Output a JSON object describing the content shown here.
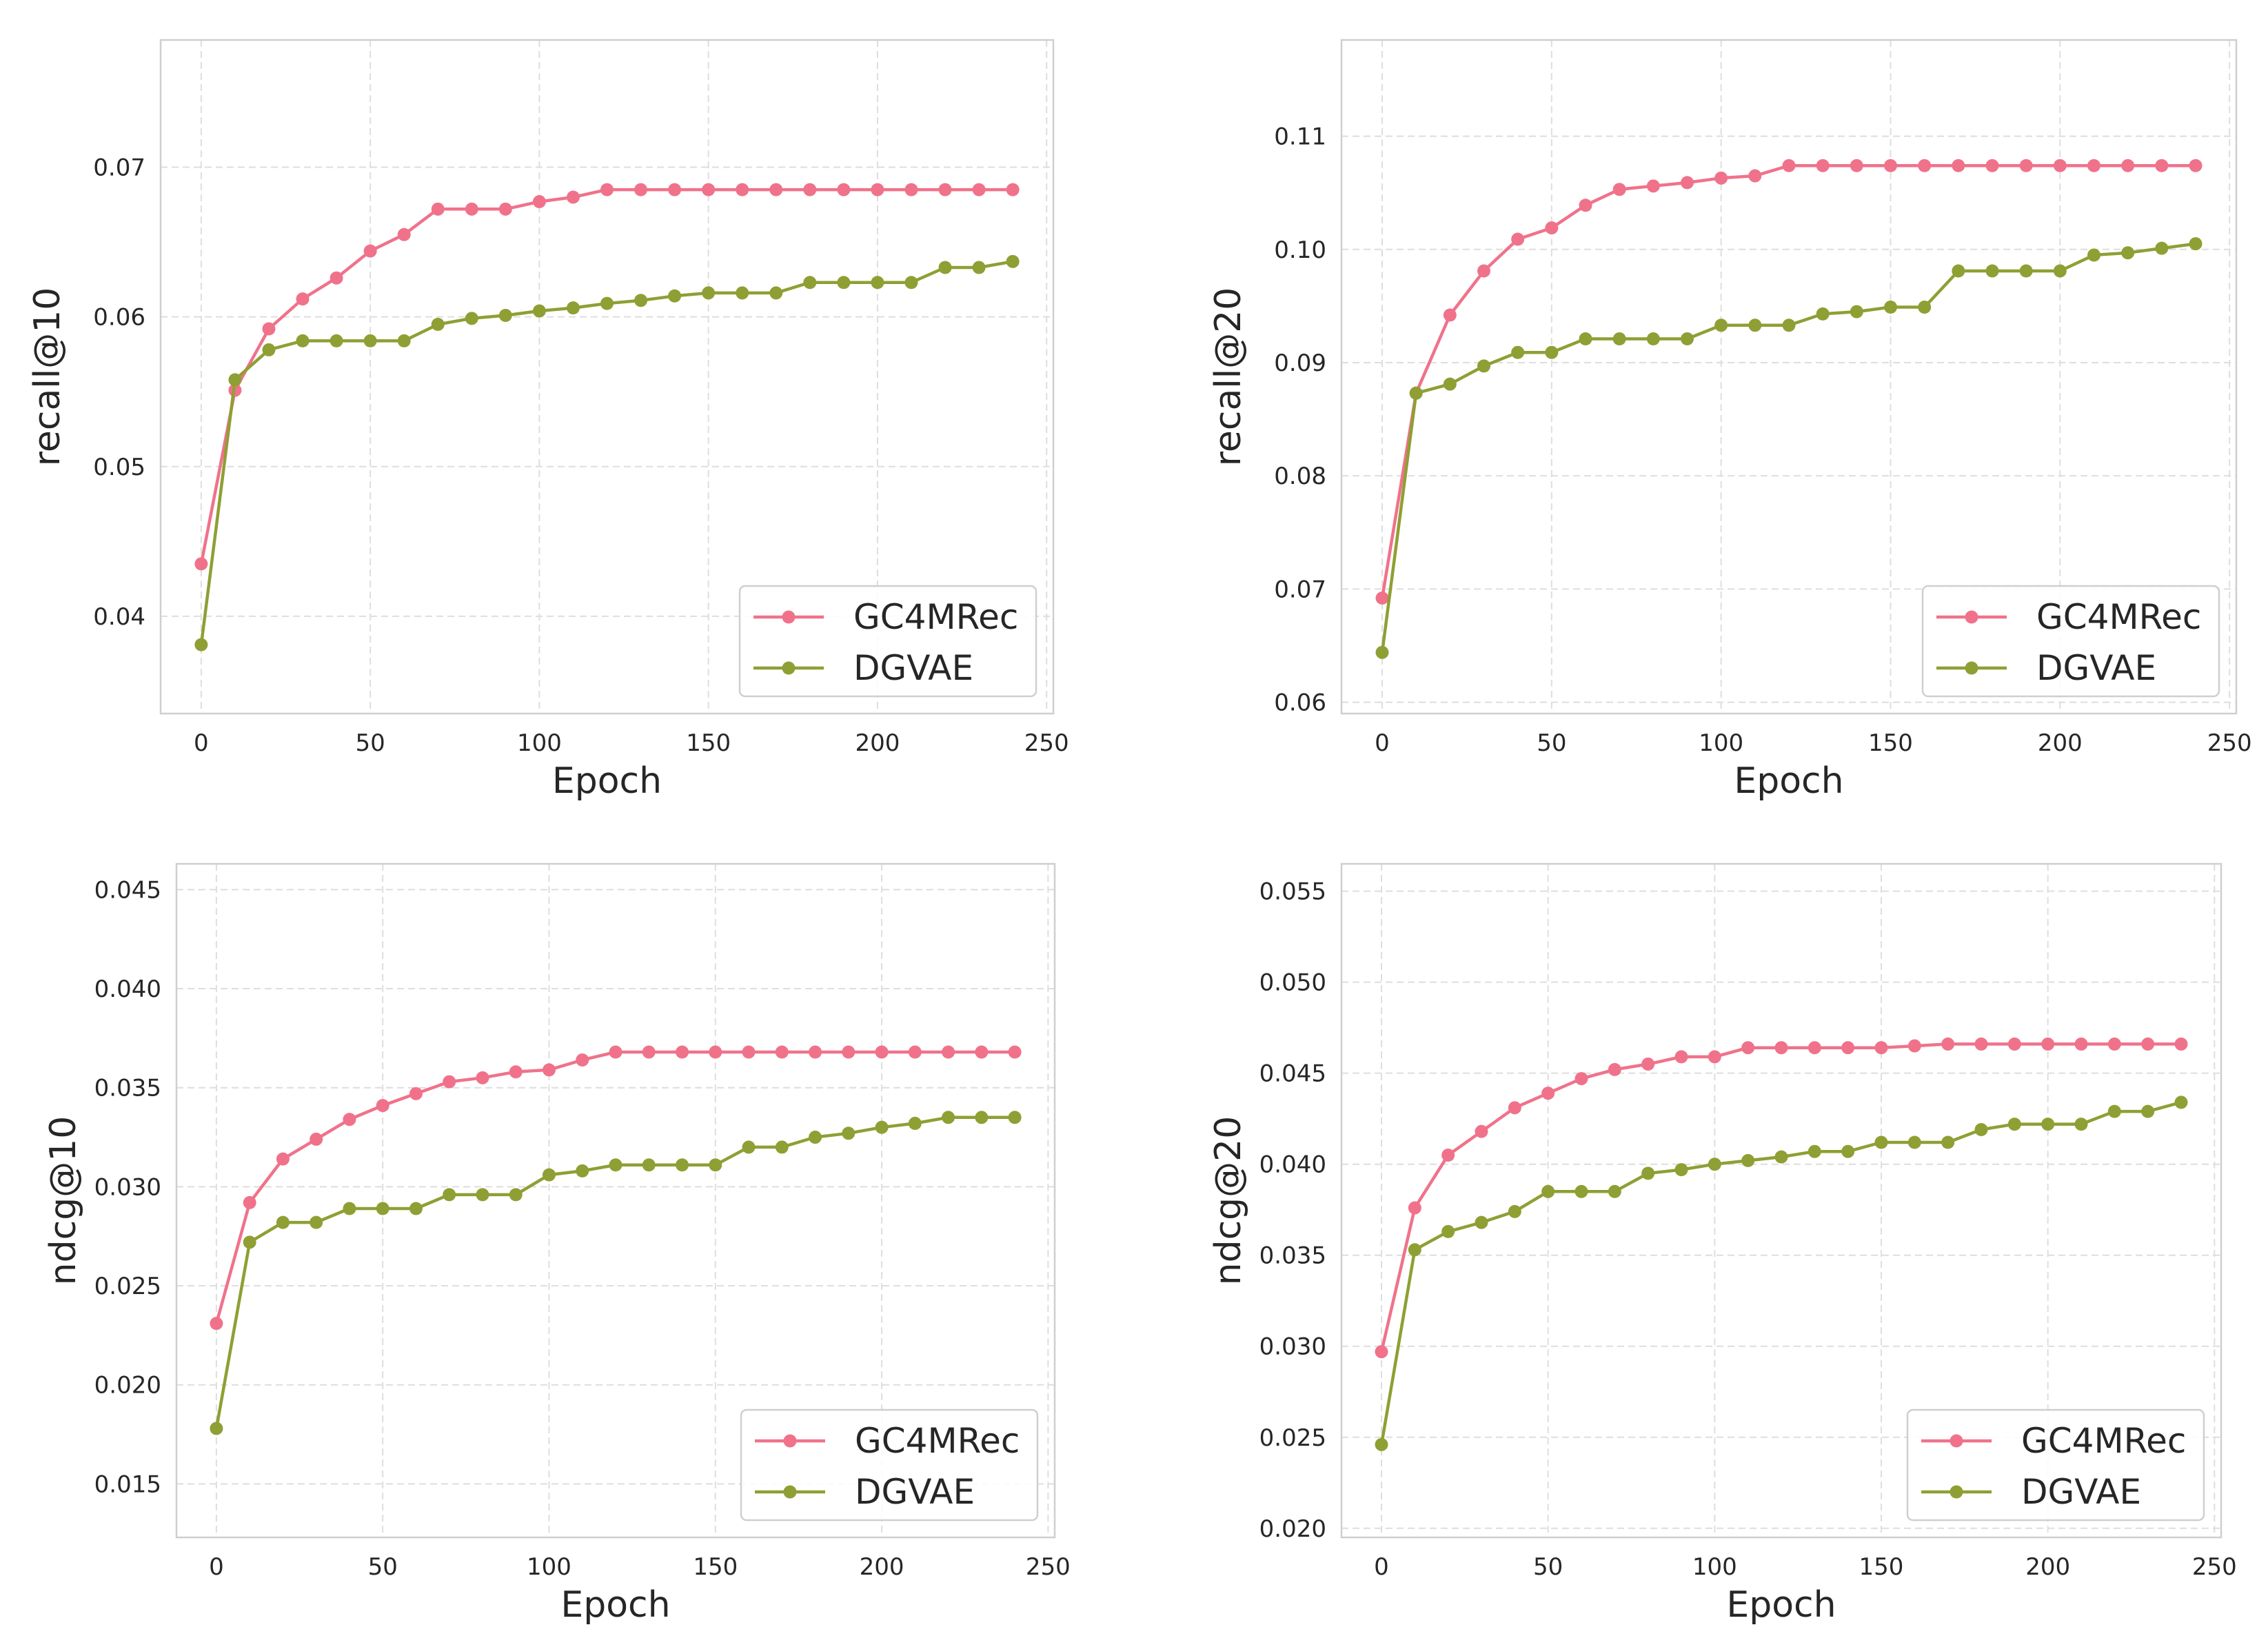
{
  "colors": {
    "gc4mrec": "#f0728a",
    "dgvae": "#8f9f34",
    "grid": "#dedede",
    "frame": "#cfcfcf"
  },
  "chart_data": [
    {
      "type": "line",
      "id": "recall10",
      "xlabel": "Epoch",
      "ylabel": "recall@10",
      "xlim": [
        -12,
        252
      ],
      "ylim": [
        0.0335,
        0.0785
      ],
      "xticks": [
        0,
        50,
        100,
        150,
        200,
        250
      ],
      "yticks": [
        0.04,
        0.05,
        0.06,
        0.07
      ],
      "xtick_labels": [
        "0",
        "50",
        "100",
        "150",
        "200",
        "250"
      ],
      "ytick_labels": [
        "0.04",
        "0.05",
        "0.06",
        "0.07"
      ],
      "legend_position": "lower-right",
      "x": [
        0,
        10,
        20,
        30,
        40,
        50,
        60,
        70,
        80,
        90,
        100,
        110,
        120,
        130,
        140,
        150,
        160,
        170,
        180,
        190,
        200,
        210,
        220,
        230,
        240
      ],
      "series": [
        {
          "name": "GC4MRec",
          "values": [
            0.0435,
            0.0551,
            0.0592,
            0.0612,
            0.0626,
            0.0644,
            0.0655,
            0.0672,
            0.0672,
            0.0672,
            0.0677,
            0.068,
            0.0685,
            0.0685,
            0.0685,
            0.0685,
            0.0685,
            0.0685,
            0.0685,
            0.0685,
            0.0685,
            0.0685,
            0.0685,
            0.0685,
            0.0685
          ]
        },
        {
          "name": "DGVAE",
          "values": [
            0.0381,
            0.0558,
            0.0578,
            0.0584,
            0.0584,
            0.0584,
            0.0584,
            0.0595,
            0.0599,
            0.0601,
            0.0604,
            0.0606,
            0.0609,
            0.0611,
            0.0614,
            0.0616,
            0.0616,
            0.0616,
            0.0623,
            0.0623,
            0.0623,
            0.0623,
            0.0633,
            0.0633,
            0.0637
          ]
        }
      ]
    },
    {
      "type": "line",
      "id": "recall20",
      "xlabel": "Epoch",
      "ylabel": "recall@20",
      "xlim": [
        -12,
        252
      ],
      "ylim": [
        0.059,
        0.1185
      ],
      "xticks": [
        0,
        50,
        100,
        150,
        200,
        250
      ],
      "yticks": [
        0.06,
        0.07,
        0.08,
        0.09,
        0.1,
        0.11
      ],
      "xtick_labels": [
        "0",
        "50",
        "100",
        "150",
        "200",
        "250"
      ],
      "ytick_labels": [
        "0.06",
        "0.07",
        "0.08",
        "0.09",
        "0.10",
        "0.11"
      ],
      "legend_position": "lower-right",
      "x": [
        0,
        10,
        20,
        30,
        40,
        50,
        60,
        70,
        80,
        90,
        100,
        110,
        120,
        130,
        140,
        150,
        160,
        170,
        180,
        190,
        200,
        210,
        220,
        230,
        240
      ],
      "series": [
        {
          "name": "GC4MRec",
          "values": [
            0.0692,
            0.0873,
            0.0942,
            0.0981,
            0.1009,
            0.1019,
            0.1039,
            0.1053,
            0.1056,
            0.1059,
            0.1063,
            0.1065,
            0.1074,
            0.1074,
            0.1074,
            0.1074,
            0.1074,
            0.1074,
            0.1074,
            0.1074,
            0.1074,
            0.1074,
            0.1074,
            0.1074,
            0.1074
          ]
        },
        {
          "name": "DGVAE",
          "values": [
            0.0644,
            0.0873,
            0.0881,
            0.0897,
            0.0909,
            0.0909,
            0.0921,
            0.0921,
            0.0921,
            0.0921,
            0.0933,
            0.0933,
            0.0933,
            0.0943,
            0.0945,
            0.0949,
            0.0949,
            0.0981,
            0.0981,
            0.0981,
            0.0981,
            0.0995,
            0.0997,
            0.1001,
            0.1005
          ]
        }
      ]
    },
    {
      "type": "line",
      "id": "ndcg10",
      "xlabel": "Epoch",
      "ylabel": "ndcg@10",
      "xlim": [
        -12,
        252
      ],
      "ylim": [
        0.0123,
        0.0463
      ],
      "xticks": [
        0,
        50,
        100,
        150,
        200,
        250
      ],
      "yticks": [
        0.015,
        0.02,
        0.025,
        0.03,
        0.035,
        0.04,
        0.045
      ],
      "xtick_labels": [
        "0",
        "50",
        "100",
        "150",
        "200",
        "250"
      ],
      "ytick_labels": [
        "0.015",
        "0.020",
        "0.025",
        "0.030",
        "0.035",
        "0.040",
        "0.045"
      ],
      "legend_position": "lower-right",
      "x": [
        0,
        10,
        20,
        30,
        40,
        50,
        60,
        70,
        80,
        90,
        100,
        110,
        120,
        130,
        140,
        150,
        160,
        170,
        180,
        190,
        200,
        210,
        220,
        230,
        240
      ],
      "series": [
        {
          "name": "GC4MRec",
          "values": [
            0.0231,
            0.0292,
            0.0314,
            0.0324,
            0.0334,
            0.0341,
            0.0347,
            0.0353,
            0.0355,
            0.0358,
            0.0359,
            0.0364,
            0.0368,
            0.0368,
            0.0368,
            0.0368,
            0.0368,
            0.0368,
            0.0368,
            0.0368,
            0.0368,
            0.0368,
            0.0368,
            0.0368,
            0.0368
          ]
        },
        {
          "name": "DGVAE",
          "values": [
            0.0178,
            0.0272,
            0.0282,
            0.0282,
            0.0289,
            0.0289,
            0.0289,
            0.0296,
            0.0296,
            0.0296,
            0.0306,
            0.0308,
            0.0311,
            0.0311,
            0.0311,
            0.0311,
            0.032,
            0.032,
            0.0325,
            0.0327,
            0.033,
            0.0332,
            0.0335,
            0.0335,
            0.0335
          ]
        }
      ]
    },
    {
      "type": "line",
      "id": "ndcg20",
      "xlabel": "Epoch",
      "ylabel": "ndcg@20",
      "xlim": [
        -12,
        252
      ],
      "ylim": [
        0.0195,
        0.0565
      ],
      "xticks": [
        0,
        50,
        100,
        150,
        200,
        250
      ],
      "yticks": [
        0.02,
        0.025,
        0.03,
        0.035,
        0.04,
        0.045,
        0.05,
        0.055
      ],
      "xtick_labels": [
        "0",
        "50",
        "100",
        "150",
        "200",
        "250"
      ],
      "ytick_labels": [
        "0.020",
        "0.025",
        "0.030",
        "0.035",
        "0.040",
        "0.045",
        "0.050",
        "0.055"
      ],
      "legend_position": "lower-right",
      "x": [
        0,
        10,
        20,
        30,
        40,
        50,
        60,
        70,
        80,
        90,
        100,
        110,
        120,
        130,
        140,
        150,
        160,
        170,
        180,
        190,
        200,
        210,
        220,
        230,
        240
      ],
      "series": [
        {
          "name": "GC4MRec",
          "values": [
            0.0297,
            0.0376,
            0.0405,
            0.0418,
            0.0431,
            0.0439,
            0.0447,
            0.0452,
            0.0455,
            0.0459,
            0.0459,
            0.0464,
            0.0464,
            0.0464,
            0.0464,
            0.0464,
            0.0465,
            0.0466,
            0.0466,
            0.0466,
            0.0466,
            0.0466,
            0.0466,
            0.0466,
            0.0466
          ]
        },
        {
          "name": "DGVAE",
          "values": [
            0.0246,
            0.0353,
            0.0363,
            0.0368,
            0.0374,
            0.0385,
            0.0385,
            0.0385,
            0.0395,
            0.0397,
            0.04,
            0.0402,
            0.0404,
            0.0407,
            0.0407,
            0.0412,
            0.0412,
            0.0412,
            0.0419,
            0.0422,
            0.0422,
            0.0422,
            0.0429,
            0.0429,
            0.0434
          ]
        }
      ]
    }
  ]
}
